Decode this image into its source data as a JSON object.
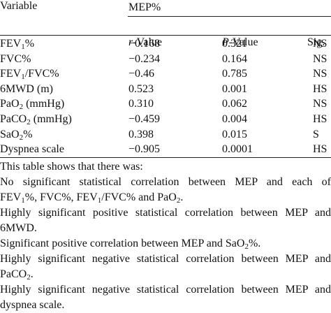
{
  "table": {
    "header": {
      "variable": "Variable",
      "group": "MEP%",
      "r_label": "-Value",
      "r_italic": "r",
      "p_label": "-Value",
      "p_italic": "P",
      "sig": "Sig."
    },
    "rows": [
      {
        "pre": "FEV",
        "sub": "1",
        "post": "%",
        "r": "−0.168",
        "p": "0.321",
        "sig": "NS"
      },
      {
        "pre": "FVC%",
        "sub": "",
        "post": "",
        "r": "−0.234",
        "p": "0.164",
        "sig": "NS"
      },
      {
        "pre": "FEV",
        "sub": "1",
        "post": "/FVC%",
        "r": "−0.46",
        "p": "0.785",
        "sig": "NS"
      },
      {
        "pre": "6MWD (m)",
        "sub": "",
        "post": "",
        "r": "0.523",
        "p": "0.001",
        "sig": "HS"
      },
      {
        "pre": "PaO",
        "sub": "2",
        "post": " (mmHg)",
        "r": "0.310",
        "p": "0.062",
        "sig": "NS"
      },
      {
        "pre": "PaCO",
        "sub": "2",
        "post": " (mmHg)",
        "r": "−0.459",
        "p": "0.004",
        "sig": "HS"
      },
      {
        "pre": "SaO",
        "sub": "2",
        "post": "%",
        "r": "0.398",
        "p": "0.015",
        "sig": "S"
      },
      {
        "pre": "Dyspnea scale",
        "sub": "",
        "post": "",
        "r": "−0.905",
        "p": "0.0001",
        "sig": "HS"
      }
    ]
  },
  "footnote": {
    "intro": "This table shows that there was:",
    "line1": "No significant statistical correlation between MEP and each of",
    "line2_a": "FEV",
    "line2_sub1": "1",
    "line2_b": "%, FVC%, FEV",
    "line2_sub2": "1",
    "line2_c": "/FVC% and PaO",
    "line2_sub3": "2",
    "line2_d": ".",
    "line3": "Highly significant positive statistical correlation between MEP and",
    "line4": "6MWD.",
    "line5_a": "Significant positive correlation between MEP and SaO",
    "line5_sub": "2",
    "line5_b": "%.",
    "line6": "Highly significant negative statistical correlation between MEP and",
    "line7_a": "PaCO",
    "line7_sub": "2",
    "line7_b": ".",
    "line8": "Highly significant negative statistical correlation between MEP and",
    "line9": "dyspnea scale."
  }
}
